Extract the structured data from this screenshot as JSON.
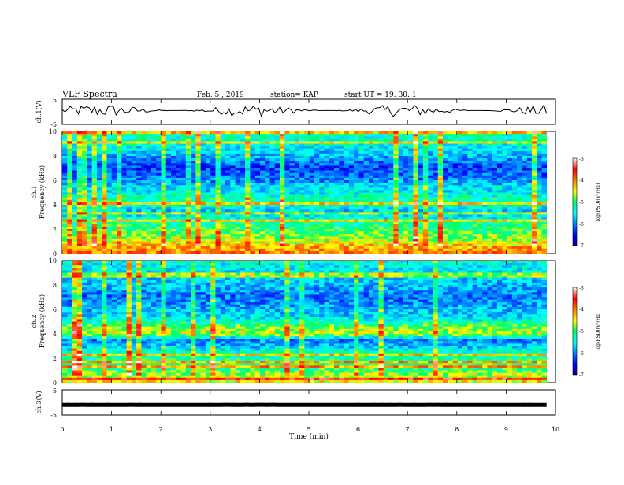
{
  "header": {
    "title": "VLF Spectra",
    "date": "Feb. 5 , 2019",
    "station": "station= KAP",
    "start": "start  UT  =   19: 30: 1"
  },
  "chart_data": [
    {
      "name": "ch1-waveform",
      "type": "line",
      "ylabel": "ch.1(V)",
      "ylim": [
        -5,
        5
      ],
      "yticks": [
        "5",
        "-5"
      ],
      "xlim": [
        0,
        10
      ],
      "visible_extent_min": 9.82,
      "approx_level": 0.5,
      "approx_amplitude": 2.5,
      "color": "#000000"
    },
    {
      "name": "ch1-spectrogram",
      "type": "heatmap",
      "ylabel_line1": "ch.1",
      "ylabel_line2": "Frequency  (kHz)",
      "ylim": [
        0,
        10
      ],
      "yticks": [
        "0",
        "2",
        "4",
        "6",
        "8",
        "10"
      ],
      "xlim": [
        0,
        10
      ],
      "visible_extent_min": 9.82,
      "colorbar": {
        "label": "log(PSD)(V²/Hz)",
        "range": [
          -7,
          -3
        ],
        "ticks": [
          "-3",
          "-4",
          "-5",
          "-6",
          "-7"
        ]
      },
      "frequency_profile_khz": [
        [
          0,
          -4.0
        ],
        [
          0.6,
          -4.2
        ],
        [
          1.0,
          -4.6
        ],
        [
          1.5,
          -4.8
        ],
        [
          2.0,
          -5.0
        ],
        [
          2.5,
          -5.2
        ],
        [
          3.0,
          -5.5
        ],
        [
          3.5,
          -5.7
        ],
        [
          4.0,
          -5.3
        ],
        [
          4.5,
          -5.2
        ],
        [
          5.0,
          -5.6
        ],
        [
          5.5,
          -5.6
        ],
        [
          6.0,
          -6.0
        ],
        [
          7.0,
          -6.3
        ],
        [
          8.0,
          -5.8
        ],
        [
          9.0,
          -5.4
        ],
        [
          10.0,
          -5.2
        ]
      ]
    },
    {
      "name": "ch2-spectrogram",
      "type": "heatmap",
      "ylabel_line1": "ch.2",
      "ylabel_line2": "Frequency  (kHz)",
      "ylim": [
        0,
        10
      ],
      "yticks": [
        "0",
        "2",
        "4",
        "6",
        "8",
        "10"
      ],
      "xlim": [
        0,
        10
      ],
      "visible_extent_min": 9.82,
      "colorbar": {
        "label": "log(PSD)(V²/Hz)",
        "range": [
          -7,
          -3
        ],
        "ticks": [
          "-3",
          "-4",
          "-5",
          "-6",
          "-7"
        ]
      },
      "frequency_profile_khz": [
        [
          0,
          -4.4
        ],
        [
          0.6,
          -4.6
        ],
        [
          1.0,
          -5.0
        ],
        [
          1.5,
          -5.0
        ],
        [
          2.0,
          -5.2
        ],
        [
          2.5,
          -5.3
        ],
        [
          3.0,
          -5.8
        ],
        [
          3.5,
          -6.0
        ],
        [
          4.0,
          -4.6
        ],
        [
          4.5,
          -4.8
        ],
        [
          5.0,
          -5.3
        ],
        [
          5.5,
          -5.7
        ],
        [
          6.0,
          -5.8
        ],
        [
          7.0,
          -6.1
        ],
        [
          8.0,
          -5.8
        ],
        [
          9.0,
          -5.6
        ],
        [
          10.0,
          -5.4
        ]
      ]
    },
    {
      "name": "ch3-waveform",
      "type": "line",
      "ylabel": "ch.3(V)",
      "ylim": [
        -5,
        5
      ],
      "yticks": [
        "5",
        "-5"
      ],
      "xlim": [
        0,
        10
      ],
      "xlabel": "Time  (min)",
      "xticks": [
        "0",
        "1",
        "2",
        "3",
        "4",
        "5",
        "6",
        "7",
        "8",
        "9",
        "10"
      ],
      "visible_extent_min": 9.82,
      "approx_level": -1.0,
      "approx_amplitude": 0.05,
      "color": "#000000"
    }
  ]
}
